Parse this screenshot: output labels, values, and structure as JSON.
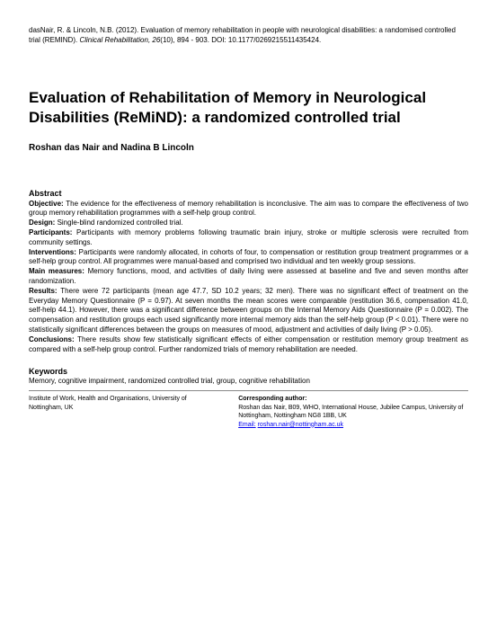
{
  "citation": {
    "authors": "dasNair, R. & Lincoln, N.B. (2012).",
    "title_part": "Evaluation of memory rehabilitation in people with neurological disabilities: a randomised controlled trial (REMIND).",
    "journal": "Clinical Rehabilitation, 26",
    "issue_pages": "(10), 894 - 903.",
    "doi": "DOI: 10.1177/0269215511435424."
  },
  "title": "Evaluation of Rehabilitation of Memory in Neurological Disabilities (ReMiND): a randomized controlled trial",
  "authors": "Roshan das Nair and Nadina B Lincoln",
  "abstract": {
    "heading": "Abstract",
    "sections": [
      {
        "label": "Objective:",
        "text": "The evidence for the effectiveness of memory rehabilitation is inconclusive. The aim was to compare the effectiveness of two group memory rehabilitation programmes with a self-help group control."
      },
      {
        "label": "Design:",
        "text": "Single-blind randomized controlled trial."
      },
      {
        "label": "Participants:",
        "text": "Participants with memory problems following traumatic brain injury, stroke or multiple sclerosis were recruited from community settings."
      },
      {
        "label": "Interventions:",
        "text": "Participants were randomly allocated, in cohorts of four, to compensation or restitution group treatment programmes or a self-help group control. All programmes were manual-based and comprised two individual and ten weekly group sessions."
      },
      {
        "label": "Main measures:",
        "text": "Memory functions, mood, and activities of daily living were assessed at baseline and five and seven months after randomization."
      },
      {
        "label": "Results:",
        "text": "There were 72 participants (mean age 47.7, SD 10.2 years; 32 men). There was no significant effect of treatment on the Everyday Memory Questionnaire (P = 0.97). At seven months the mean scores were comparable (restitution 36.6, compensation 41.0, self-help 44.1). However, there was a significant difference between groups on the Internal Memory Aids Questionnaire (P = 0.002). The compensation and restitution groups each used significantly more internal memory aids than the self-help group (P < 0.01). There were no statistically significant differences between the groups on measures of mood, adjustment and activities of daily living (P > 0.05)."
      },
      {
        "label": "Conclusions:",
        "text": "There results show few statistically significant effects of either compensation or restitution memory group treatment as compared with a self-help group control. Further randomized trials of memory rehabilitation are needed."
      }
    ]
  },
  "keywords": {
    "heading": "Keywords",
    "text": "Memory, cognitive impairment, randomized controlled trial, group, cognitive rehabilitation"
  },
  "footer": {
    "left": "Institute of Work, Health and Organisations, University of Nottingham, UK",
    "right": {
      "heading": "Corresponding author:",
      "body": "Roshan das Nair, B09, WHO, International House, Jubilee Campus, University of Nottingham, Nottingham NG8 1BB, UK",
      "email_label": "Email:",
      "email": "roshan.nair@nottingham.ac.uk"
    }
  }
}
